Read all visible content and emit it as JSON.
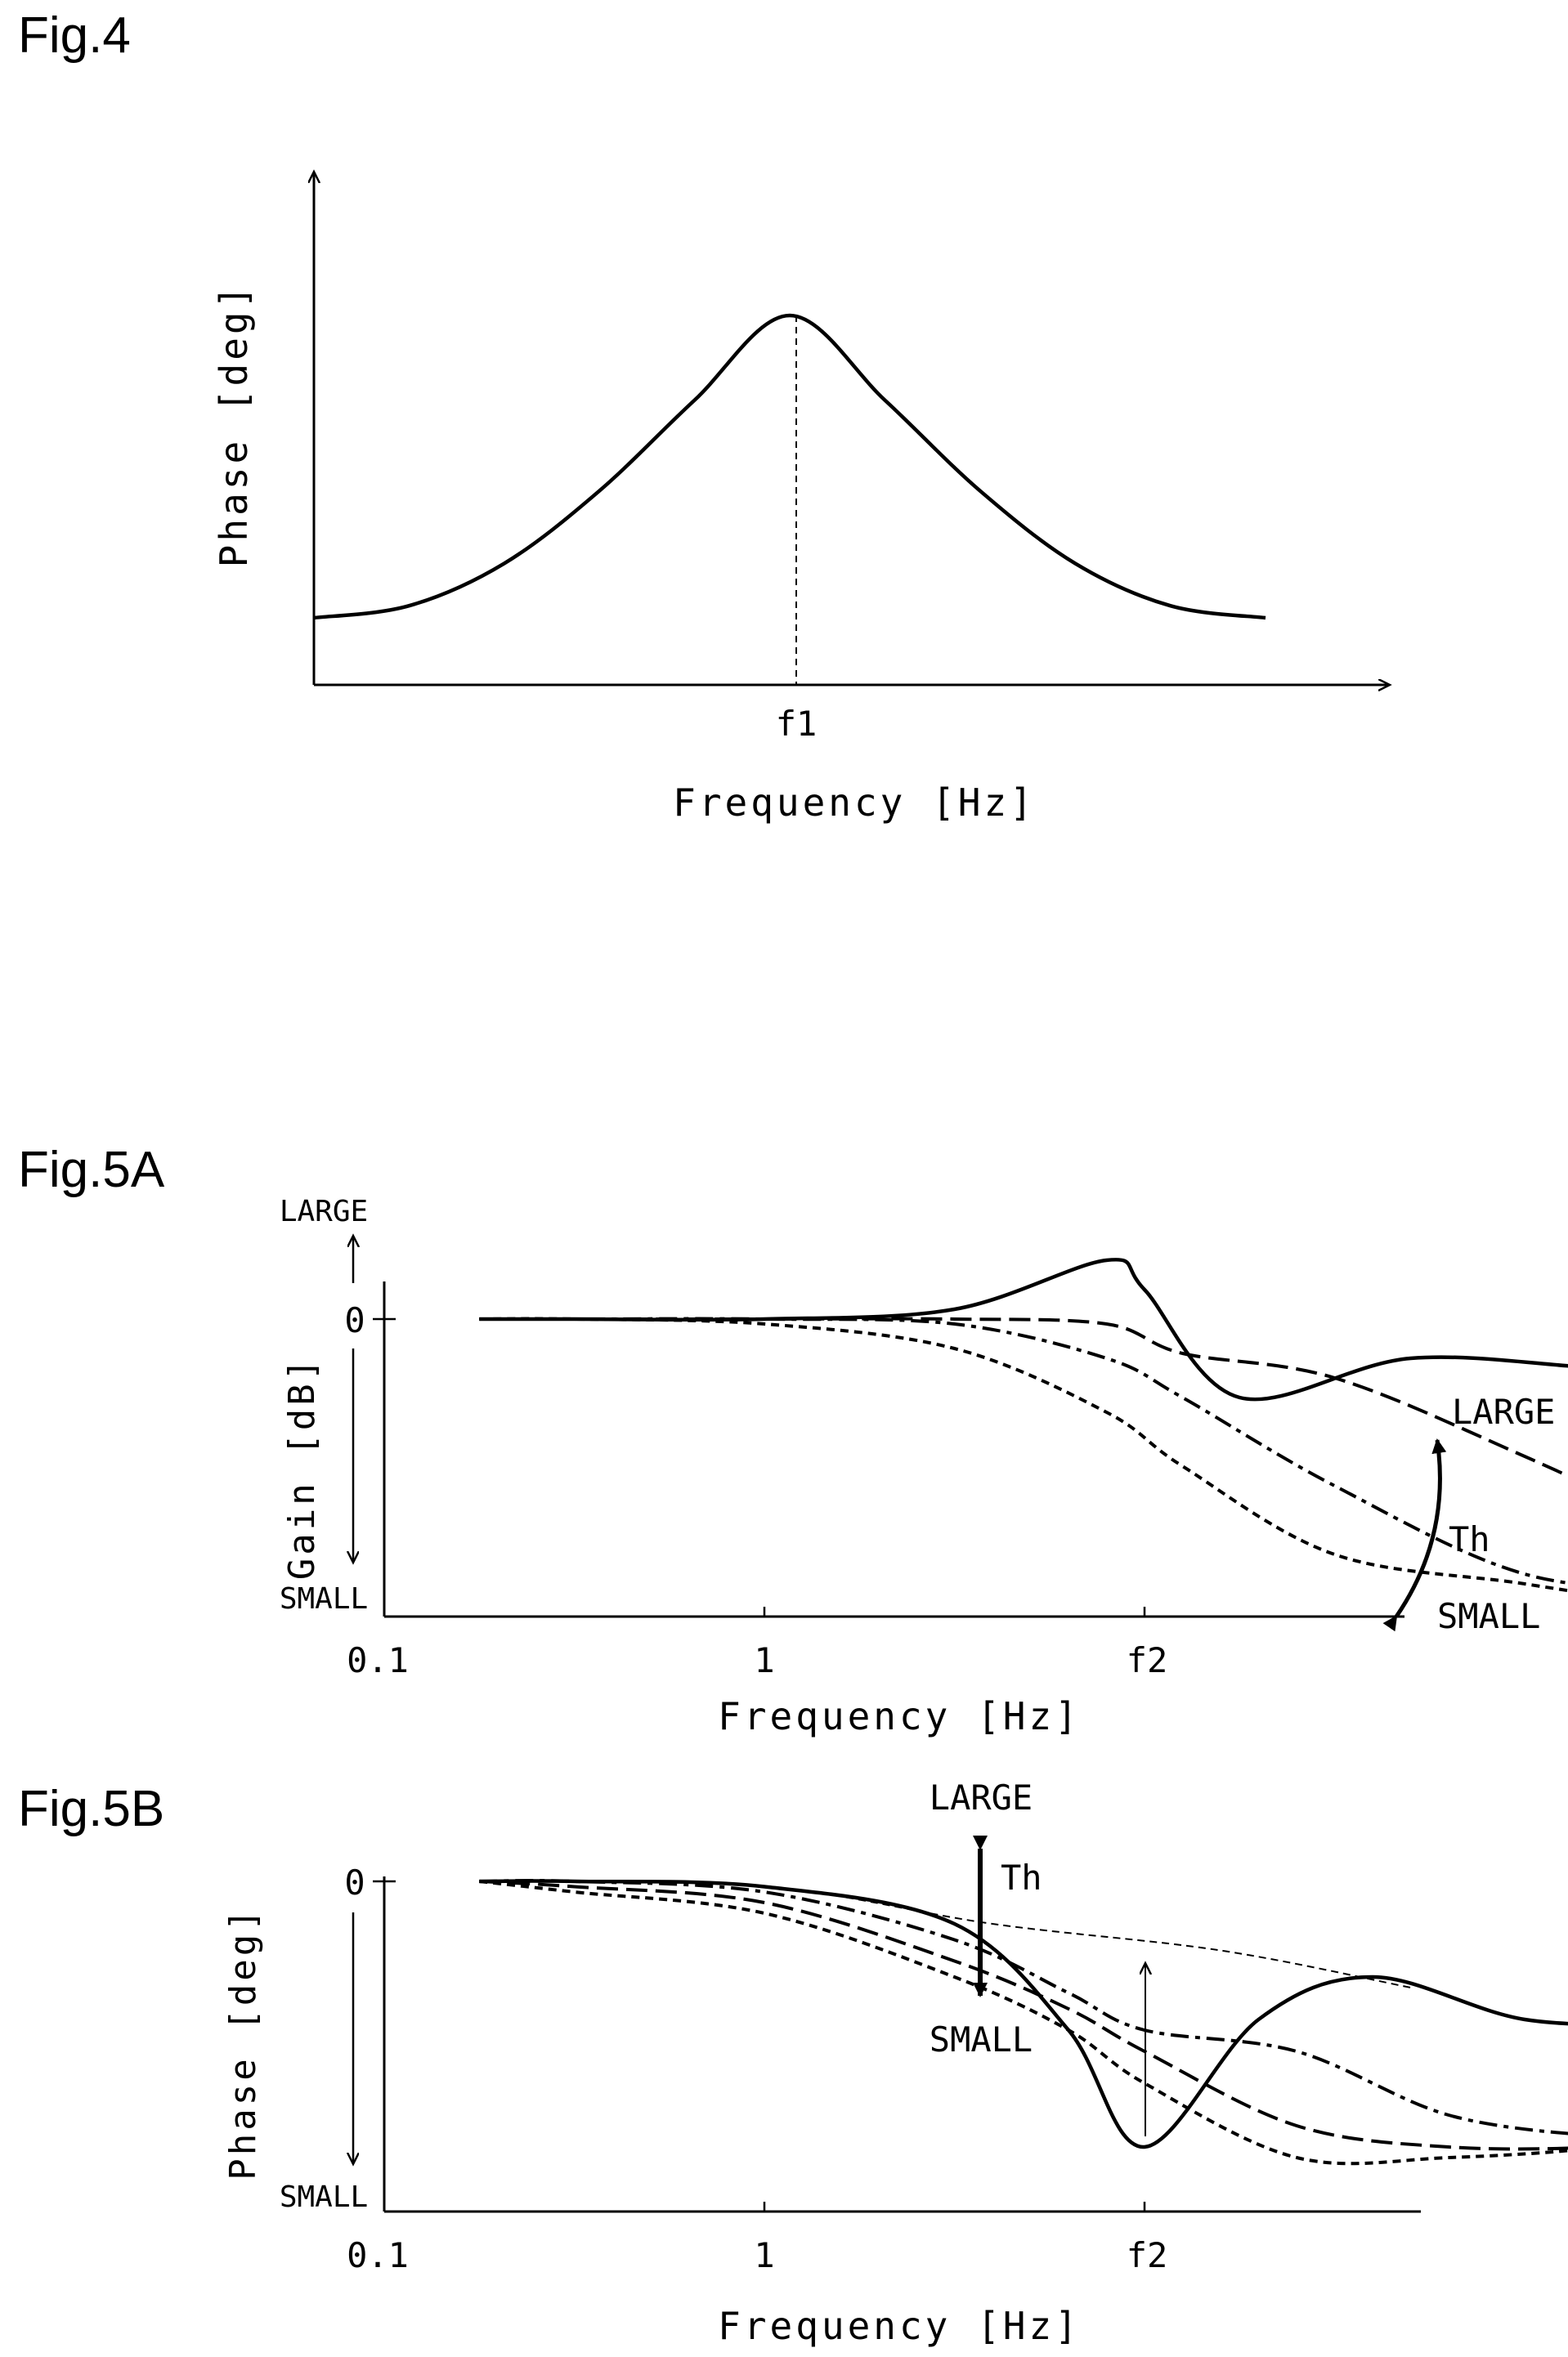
{
  "figures": {
    "fig4": {
      "label": "Fig.4"
    },
    "fig5a": {
      "label": "Fig.5A"
    },
    "fig5b": {
      "label": "Fig.5B"
    }
  },
  "chart_data": [
    {
      "id": "fig4",
      "type": "line",
      "title": "",
      "xlabel": "Frequency [Hz]",
      "ylabel": "Phase [deg]",
      "x_ticks": [
        "f1"
      ],
      "x_scale": "linear",
      "y_ticks": [],
      "grid": false,
      "series": [
        {
          "style": "solid",
          "shape": "bell curve",
          "peak_at": "f1",
          "x": [
            0,
            0.1,
            0.2,
            0.3,
            0.4,
            0.5,
            0.6,
            0.7,
            0.8,
            0.9,
            1.0
          ],
          "y": [
            0,
            0.04,
            0.18,
            0.42,
            0.72,
            1.0,
            0.72,
            0.42,
            0.18,
            0.04,
            0
          ]
        }
      ],
      "annotations": [
        {
          "type": "vertical-dashed-line",
          "x": "f1"
        }
      ]
    },
    {
      "id": "fig5a",
      "type": "line",
      "xlabel": "Frequency [Hz]",
      "ylabel": "Gain [dB]",
      "x_scale": "log",
      "x_ticks": [
        "0.1",
        "1",
        "f2"
      ],
      "y_ticks": [
        "0"
      ],
      "y_end_labels": {
        "top": "LARGE",
        "bottom": "SMALL"
      },
      "right_labels": {
        "top": "LARGE",
        "middle": "Th",
        "bottom": "SMALL"
      },
      "grid": false,
      "series": [
        {
          "style": "solid",
          "note": "Th LARGE",
          "x": [
            0.25,
            0.5,
            1.0,
            1.5,
            1.9,
            2.0,
            2.25,
            2.7,
            3.2,
            3.6
          ],
          "y": [
            0,
            0,
            0,
            0.1,
            0.6,
            0.3,
            -0.8,
            -0.4,
            -0.5,
            -0.55
          ]
        },
        {
          "style": "long-dash",
          "x": [
            0.25,
            0.5,
            1.0,
            1.5,
            1.9,
            2.1,
            2.5,
            3.0,
            3.5
          ],
          "y": [
            0,
            0,
            0,
            0,
            -0.05,
            -0.35,
            -0.6,
            -1.4,
            -2.3
          ]
        },
        {
          "style": "dash-dot",
          "x": [
            0.25,
            0.5,
            1.0,
            1.5,
            1.9,
            2.1,
            2.5,
            3.0,
            3.5
          ],
          "y": [
            0,
            0,
            0,
            -0.05,
            -0.4,
            -0.8,
            -1.7,
            -2.6,
            -2.8
          ]
        },
        {
          "style": "short-dash",
          "x": [
            0.25,
            0.5,
            1.0,
            1.5,
            1.9,
            2.1,
            2.5,
            3.0,
            3.5
          ],
          "y": [
            0,
            0,
            -0.05,
            -0.3,
            -0.95,
            -1.5,
            -2.4,
            -2.7,
            -3.0
          ]
        }
      ]
    },
    {
      "id": "fig5b",
      "type": "line",
      "xlabel": "Frequency [Hz]",
      "ylabel": "Phase [deg]",
      "x_scale": "log",
      "x_ticks": [
        "0.1",
        "1",
        "f2"
      ],
      "y_ticks": [
        "0"
      ],
      "y_end_labels": {
        "bottom": "SMALL"
      },
      "annotation_labels": {
        "top": "LARGE",
        "middle": "Th",
        "bottom": "SMALL"
      },
      "grid": false,
      "series": [
        {
          "style": "solid",
          "note": "Th LARGE",
          "x": [
            0.25,
            0.5,
            1.0,
            1.5,
            1.8,
            2.0,
            2.3,
            2.6,
            3.0,
            3.4
          ],
          "y": [
            0,
            0,
            -0.05,
            -0.4,
            -1.4,
            -2.5,
            -1.3,
            -0.9,
            -1.3,
            -1.35
          ]
        },
        {
          "style": "dash-dot",
          "x": [
            0.25,
            0.5,
            1.0,
            1.5,
            1.8,
            2.0,
            2.4,
            2.8,
            3.2,
            3.4
          ],
          "y": [
            0,
            0,
            -0.1,
            -0.55,
            -1.05,
            -1.4,
            -1.6,
            -2.2,
            -2.4,
            -2.4
          ]
        },
        {
          "style": "long-dash",
          "x": [
            0.25,
            0.5,
            1.0,
            1.5,
            1.8,
            2.0,
            2.4,
            2.8,
            3.2,
            3.4
          ],
          "y": [
            0,
            -0.05,
            -0.2,
            -0.75,
            -1.2,
            -1.6,
            -2.3,
            -2.5,
            -2.5,
            -2.4
          ]
        },
        {
          "style": "short-dash",
          "x": [
            0.25,
            0.5,
            1.0,
            1.5,
            1.8,
            2.0,
            2.4,
            2.8,
            3.2,
            3.4
          ],
          "y": [
            0,
            -0.1,
            -0.3,
            -0.9,
            -1.4,
            -1.9,
            -2.6,
            -2.6,
            -2.5,
            -2.3
          ]
        },
        {
          "style": "thin-dash",
          "note": "envelope",
          "x": [
            0.25,
            1.0,
            1.6,
            2.2,
            2.7
          ],
          "y": [
            0,
            -0.05,
            -0.4,
            -0.65,
            -1.0
          ]
        }
      ]
    }
  ]
}
